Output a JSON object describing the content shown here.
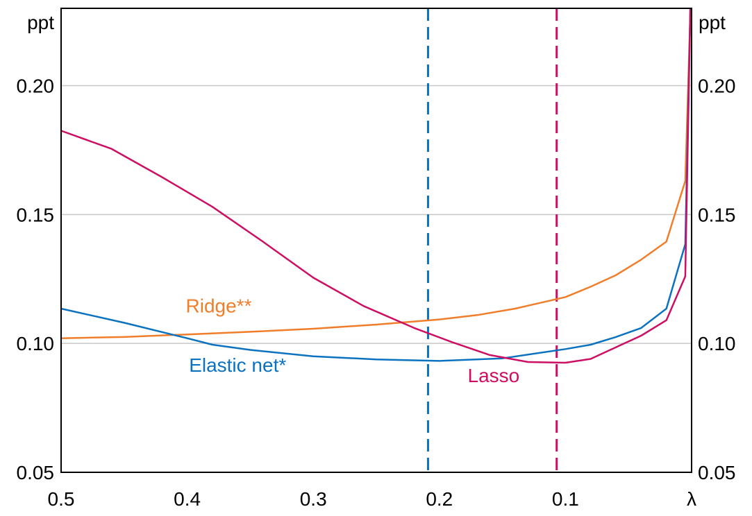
{
  "chart_data": {
    "type": "line",
    "y_unit_left": "ppt",
    "y_unit_right": "ppt",
    "x_axis_label": "λ",
    "xlim": [
      0.5,
      0.0
    ],
    "ylim": [
      0.05,
      0.23
    ],
    "x_ticks": [
      "0.5",
      "0.4",
      "0.3",
      "0.2",
      "0.1"
    ],
    "x_tick_values": [
      0.5,
      0.4,
      0.3,
      0.2,
      0.1
    ],
    "y_ticks": [
      "0.05",
      "0.10",
      "0.15",
      "0.20"
    ],
    "y_tick_values": [
      0.05,
      0.1,
      0.15,
      0.2
    ],
    "grid": "horizontal",
    "colors": {
      "ridge": "#f07d2a",
      "elastic_net": "#0b72c0",
      "lasso": "#cc0f63",
      "grid": "#c8c8c8"
    },
    "series": [
      {
        "name": "Ridge**",
        "key": "ridge",
        "x": [
          0.5,
          0.45,
          0.4,
          0.35,
          0.3,
          0.25,
          0.2,
          0.17,
          0.14,
          0.1,
          0.08,
          0.06,
          0.04,
          0.02,
          0.005,
          0.001
        ],
        "y": [
          0.102,
          0.1025,
          0.1035,
          0.1045,
          0.1057,
          0.1073,
          0.1093,
          0.111,
          0.1135,
          0.118,
          0.122,
          0.1265,
          0.1325,
          0.1395,
          0.163,
          0.228
        ]
      },
      {
        "name": "Elastic net*",
        "key": "elastic_net",
        "x": [
          0.5,
          0.45,
          0.4,
          0.38,
          0.35,
          0.3,
          0.25,
          0.2,
          0.15,
          0.1,
          0.08,
          0.06,
          0.04,
          0.02,
          0.005,
          0.001
        ],
        "y": [
          0.1135,
          0.108,
          0.102,
          0.0995,
          0.0975,
          0.095,
          0.0938,
          0.0932,
          0.0942,
          0.0978,
          0.0995,
          0.1025,
          0.106,
          0.1135,
          0.1385,
          0.23
        ]
      },
      {
        "name": "Lasso",
        "key": "lasso",
        "x": [
          0.5,
          0.46,
          0.42,
          0.38,
          0.34,
          0.3,
          0.26,
          0.22,
          0.19,
          0.16,
          0.13,
          0.1,
          0.08,
          0.06,
          0.04,
          0.02,
          0.005,
          0.001
        ],
        "y": [
          0.1825,
          0.1755,
          0.1645,
          0.153,
          0.1395,
          0.1255,
          0.1145,
          0.106,
          0.1005,
          0.0955,
          0.0928,
          0.0925,
          0.094,
          0.0985,
          0.103,
          0.109,
          0.126,
          0.23
        ]
      }
    ],
    "vertical_lines": [
      {
        "x": 0.209,
        "color_key": "elastic_net"
      },
      {
        "x": 0.107,
        "color_key": "lasso"
      }
    ],
    "annotations": [
      {
        "text": "Ridge**",
        "x": 0.375,
        "y": 0.112,
        "color_key": "ridge"
      },
      {
        "text": "Elastic net*",
        "x": 0.36,
        "y": 0.089,
        "color_key": "elastic_net"
      },
      {
        "text": "Lasso",
        "x": 0.157,
        "y": 0.085,
        "color_key": "lasso"
      }
    ]
  }
}
